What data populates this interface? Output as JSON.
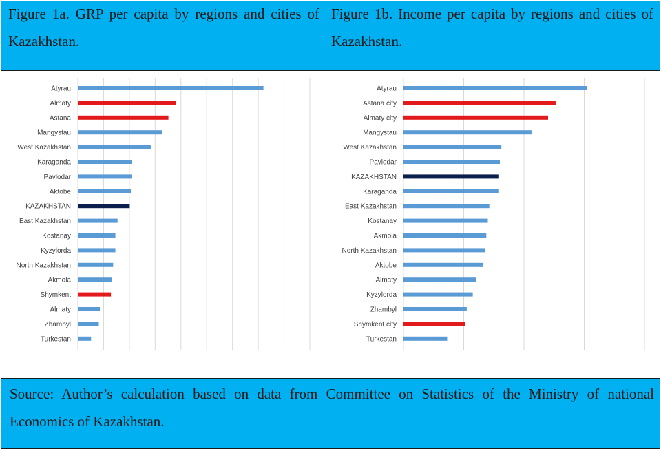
{
  "figure_a": {
    "caption": "Figure 1a. GRP per capita by regions and cities of Kazakhstan."
  },
  "figure_b": {
    "caption": "Figure 1b. Income per capita by regions and cities of Kazakhstan."
  },
  "source": {
    "text": "Source: Author’s calculation based on data from Committee on Statistics of the Ministry of national Economics of Kazakhstan."
  },
  "colors": {
    "region": "#5b9bd5",
    "city": "#e31a1c",
    "country": "#0b1f4d",
    "caption_bg": "#00b0f0"
  },
  "chart_data": [
    {
      "type": "bar",
      "orientation": "horizontal",
      "title": "Figure 1a. GRP per capita by regions and cities of Kazakhstan.",
      "categories": [
        "Atyrau",
        "Almaty",
        "Astana",
        "Mangystau",
        "West Kazakhstan",
        "Karaganda",
        "Pavlodar",
        "Aktobe",
        "KAZAKHSTAN",
        "East Kazakhstan",
        "Kostanay",
        "Kyzylorda",
        "North Kazakhstan",
        "Akmola",
        "Shymkent",
        "Almaty",
        "Zhambyl",
        "Turkestan"
      ],
      "values": [
        8.4,
        4.45,
        4.1,
        3.8,
        3.3,
        2.45,
        2.45,
        2.4,
        2.35,
        1.8,
        1.7,
        1.7,
        1.6,
        1.55,
        1.5,
        1.0,
        0.95,
        0.6
      ],
      "highlight": [
        "region",
        "city",
        "city",
        "region",
        "region",
        "region",
        "region",
        "region",
        "country",
        "region",
        "region",
        "region",
        "region",
        "region",
        "city",
        "region",
        "region",
        "region"
      ],
      "xlim": [
        0,
        10.5
      ],
      "grid": true
    },
    {
      "type": "bar",
      "orientation": "horizontal",
      "title": "Figure 1b. Income per capita by regions and cities of Kazakhstan.",
      "categories": [
        "Atyrau",
        "Astana city",
        "Almaty city",
        "Mangystau",
        "West Kazakhstan",
        "Pavlodar",
        "KAZAKHSTAN",
        "Karaganda",
        "East Kazakhstan",
        "Kostanay",
        "Akmola",
        "North Kazakhstan",
        "Aktobe",
        "Almaty",
        "Kyzylorda",
        "Zhambyl",
        "Shymkent city",
        "Turkestan"
      ],
      "values": [
        6.1,
        5.05,
        4.8,
        4.25,
        3.25,
        3.2,
        3.15,
        3.15,
        2.85,
        2.8,
        2.75,
        2.7,
        2.65,
        2.4,
        2.3,
        2.1,
        2.05,
        1.45
      ],
      "highlight": [
        "region",
        "city",
        "city",
        "region",
        "region",
        "region",
        "country",
        "region",
        "region",
        "region",
        "region",
        "region",
        "region",
        "region",
        "region",
        "region",
        "city",
        "region"
      ],
      "xlim": [
        0,
        8
      ],
      "grid": true
    }
  ]
}
